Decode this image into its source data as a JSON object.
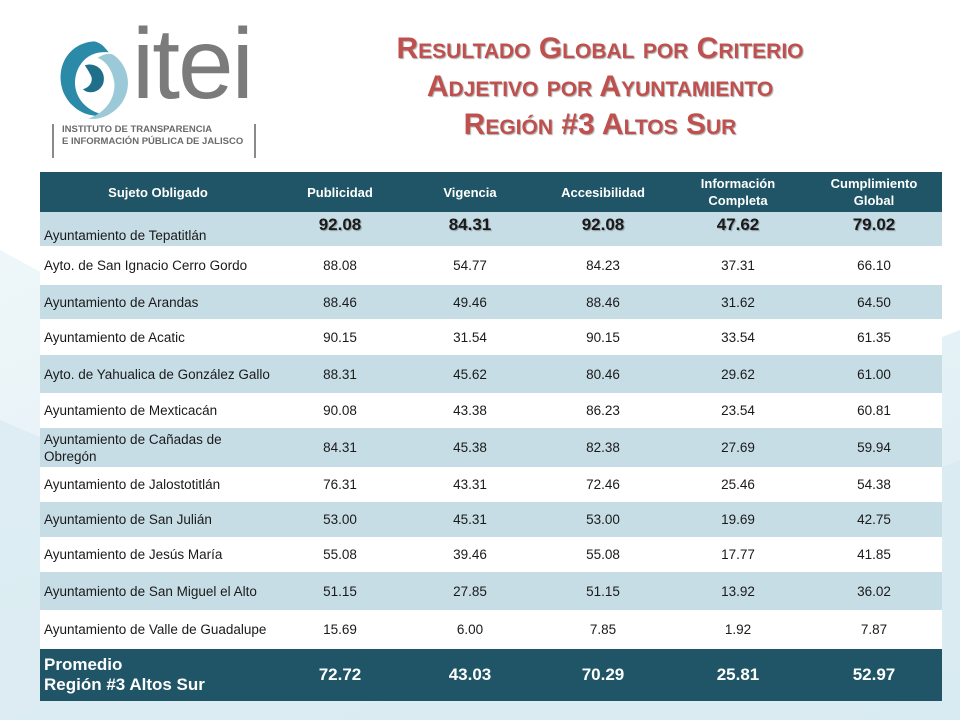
{
  "logo": {
    "word": "itei",
    "subtitle_line1": "INSTITUTO DE TRANSPARENCIA",
    "subtitle_line2": "E INFORMACIÓN PÚBLICA DE JALISCO",
    "icon": "itei-swirl-logo-icon"
  },
  "title": {
    "line1": "Resultado Global por Criterio",
    "line2": "Adjetivo por Ayuntamiento",
    "line3": "Región #3 Altos Sur"
  },
  "colors": {
    "header_bg": "#1f5566",
    "row_alt": "#c7dde6",
    "title_red": "#c0504d"
  },
  "table": {
    "headers": [
      "Sujeto Obligado",
      "Publicidad",
      "Vigencia",
      "Accesibilidad",
      "Información Completa",
      "Cumplimiento Global"
    ],
    "rows": [
      {
        "name": "Ayuntamiento de Tepatitlán",
        "values": [
          "92.08",
          "84.31",
          "92.08",
          "47.62",
          "79.02"
        ]
      },
      {
        "name": "Ayto. de San Ignacio Cerro Gordo",
        "values": [
          "88.08",
          "54.77",
          "84.23",
          "37.31",
          "66.10"
        ]
      },
      {
        "name": "Ayuntamiento de Arandas",
        "values": [
          "88.46",
          "49.46",
          "88.46",
          "31.62",
          "64.50"
        ]
      },
      {
        "name": "Ayuntamiento de Acatic",
        "values": [
          "90.15",
          "31.54",
          "90.15",
          "33.54",
          "61.35"
        ]
      },
      {
        "name": "Ayto. de Yahualica de González Gallo",
        "values": [
          "88.31",
          "45.62",
          "80.46",
          "29.62",
          "61.00"
        ]
      },
      {
        "name": "Ayuntamiento de Mexticacán",
        "values": [
          "90.08",
          "43.38",
          "86.23",
          "23.54",
          "60.81"
        ]
      },
      {
        "name": "Ayuntamiento de Cañadas de Obregón",
        "values": [
          "84.31",
          "45.38",
          "82.38",
          "27.69",
          "59.94"
        ]
      },
      {
        "name": "Ayuntamiento de Jalostotitlán",
        "values": [
          "76.31",
          "43.31",
          "72.46",
          "25.46",
          "54.38"
        ]
      },
      {
        "name": "Ayuntamiento de San Julián",
        "values": [
          "53.00",
          "45.31",
          "53.00",
          "19.69",
          "42.75"
        ]
      },
      {
        "name": "Ayuntamiento de Jesús María",
        "values": [
          "55.08",
          "39.46",
          "55.08",
          "17.77",
          "41.85"
        ]
      },
      {
        "name": "Ayuntamiento de San Miguel el Alto",
        "values": [
          "51.15",
          "27.85",
          "51.15",
          "13.92",
          "36.02"
        ]
      },
      {
        "name": "Ayuntamiento de Valle de Guadalupe",
        "values": [
          "15.69",
          "6.00",
          "7.85",
          "1.92",
          "7.87"
        ]
      }
    ],
    "footer": {
      "line1": "Promedio",
      "line2": "Región #3 Altos Sur",
      "values": [
        "72.72",
        "43.03",
        "70.29",
        "25.81",
        "52.97"
      ]
    }
  }
}
